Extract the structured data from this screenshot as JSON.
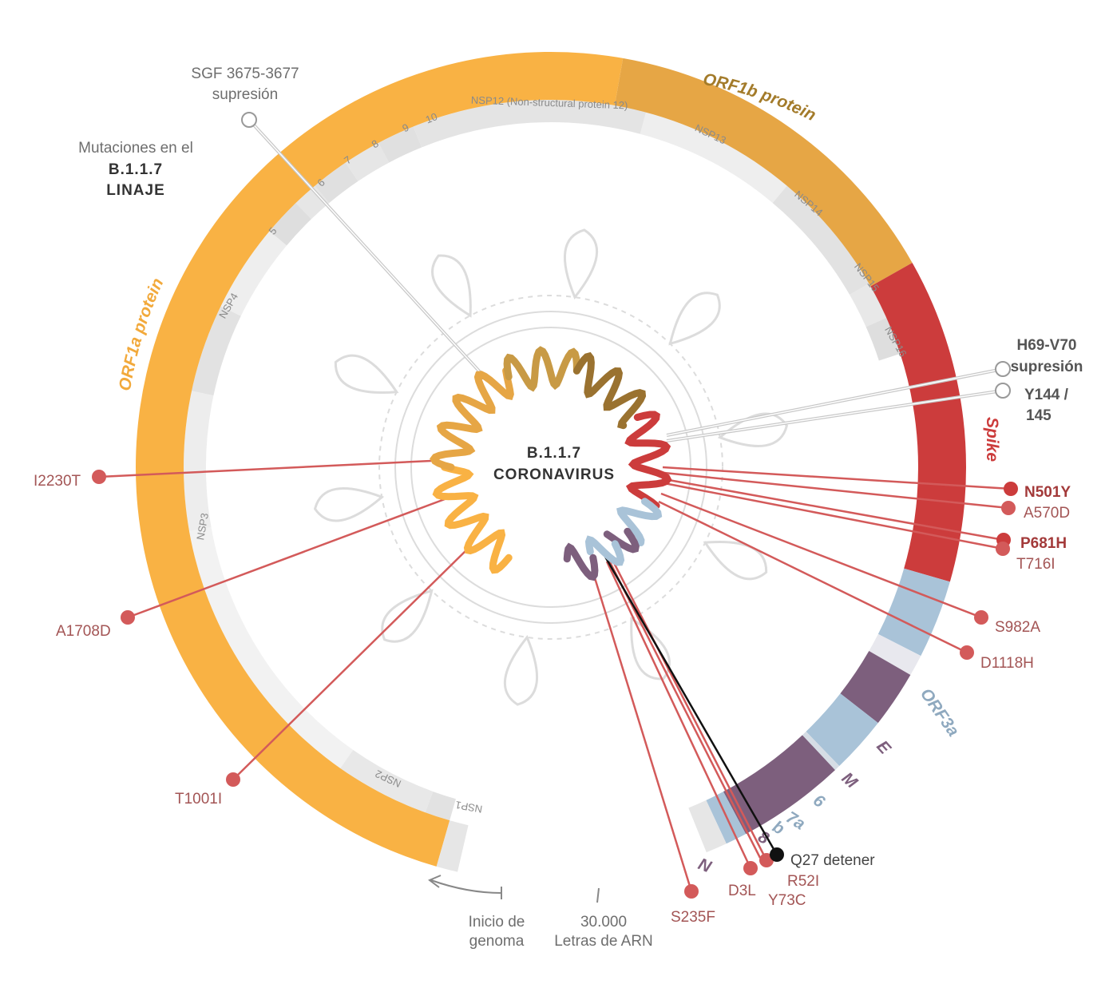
{
  "center": {
    "line1": "B.1.1.7",
    "line2": "CORONAVIRUS"
  },
  "legend": {
    "line1": "Mutaciones en el",
    "line2": "B.1.1.7",
    "line3": "LINAJE"
  },
  "proteins": {
    "orf1a": {
      "label": "ORF1a protein",
      "color": "#f9b244"
    },
    "orf1b": {
      "label": "ORF1b protein",
      "color": "#e6a645"
    },
    "spike": {
      "label": "Spike",
      "color": "#cc3c3c"
    },
    "orf3a": {
      "label": "ORF3a",
      "color": "#a9c3d8"
    },
    "e": {
      "label": "E"
    },
    "m": {
      "label": "M"
    },
    "n": {
      "label": "N"
    },
    "orf6": {
      "label": "6"
    },
    "orf7a": {
      "label": "7a"
    },
    "orf7b": {
      "label": "b"
    },
    "orf8": {
      "label": "8"
    },
    "accessory_color": "#7d5f7d"
  },
  "nsp_labels": {
    "nsp1": "NSP1",
    "nsp2": "NSP2",
    "nsp3": "NSP3",
    "nsp4": "NSP4",
    "n5": "5",
    "n6": "6",
    "n7": "7",
    "n8": "8",
    "n9": "9",
    "n10": "10",
    "nsp12": "NSP12 (Non-structural protein 12)",
    "nsp13": "NSP13",
    "nsp14": "NSP14",
    "nsp15": "NSP15",
    "nsp16": "NSP16"
  },
  "annotations": {
    "sgf_line1": "SGF 3675-3677",
    "sgf_line2": "supresión",
    "h69_line1": "H69-V70",
    "h69_line2": "supresión",
    "y144_line1": "Y144 /",
    "y144_line2": "145"
  },
  "mutations": {
    "i2230t": "I2230T",
    "a1708d": "A1708D",
    "t1001i": "T1001I",
    "n501y": "N501Y",
    "a570d": "A570D",
    "p681h": "P681H",
    "t716i": "T716I",
    "s982a": "S982A",
    "d1118h": "D1118H",
    "s235f": "S235F",
    "d3l": "D3L",
    "r52i": "R52I",
    "y73c": "Y73C",
    "q27": "Q27 detener"
  },
  "footer": {
    "start_line1": "Inicio de",
    "start_line2": "genoma",
    "end_line1": "30.000",
    "end_line2": "Letras de ARN"
  }
}
